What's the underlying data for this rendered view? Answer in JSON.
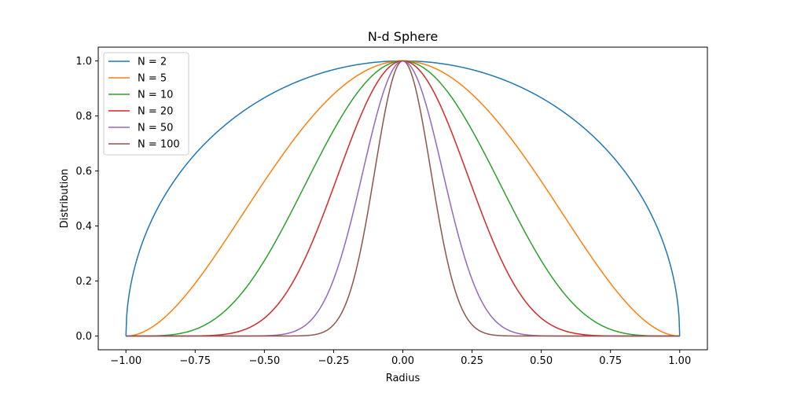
{
  "chart_data": {
    "type": "line",
    "title": "N-d Sphere",
    "xlabel": "Radius",
    "ylabel": "Distribution",
    "xlim": [
      -1.1,
      1.1
    ],
    "ylim": [
      -0.05,
      1.05
    ],
    "xticks": [
      -1.0,
      -0.75,
      -0.5,
      -0.25,
      0.0,
      0.25,
      0.5,
      0.75,
      1.0
    ],
    "xtick_labels": [
      "−1.00",
      "−0.75",
      "−0.50",
      "−0.25",
      "0.00",
      "0.25",
      "0.50",
      "0.75",
      "1.00"
    ],
    "yticks": [
      0.0,
      0.2,
      0.4,
      0.6,
      0.8,
      1.0
    ],
    "ytick_labels": [
      "0.0",
      "0.2",
      "0.4",
      "0.6",
      "0.8",
      "1.0"
    ],
    "grid": false,
    "legend_position": "top-left",
    "x_range": [
      -1.0,
      1.0
    ],
    "formula": "(1 - x^2)^((N-1)/2)",
    "series": [
      {
        "name": "N = 2",
        "N": 2,
        "color": "#1f77b4"
      },
      {
        "name": "N = 5",
        "N": 5,
        "color": "#ff7f0e"
      },
      {
        "name": "N = 10",
        "N": 10,
        "color": "#2ca02c"
      },
      {
        "name": "N = 20",
        "N": 20,
        "color": "#d62728"
      },
      {
        "name": "N = 50",
        "N": 50,
        "color": "#9467bd"
      },
      {
        "name": "N = 100",
        "N": 100,
        "color": "#8c564b"
      }
    ]
  }
}
